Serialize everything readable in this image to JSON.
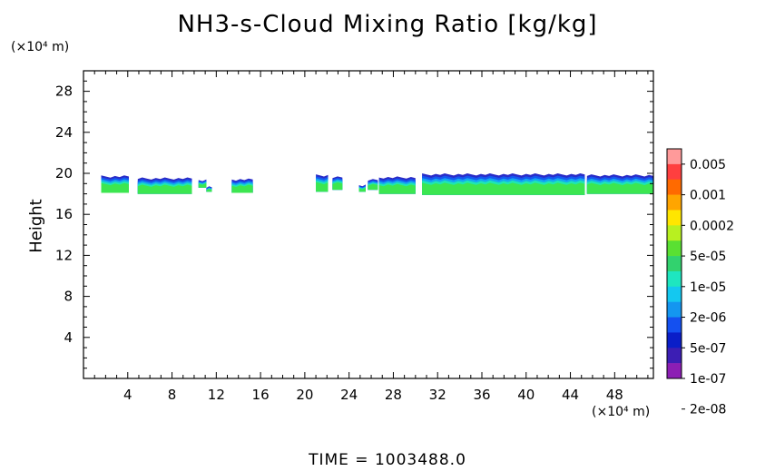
{
  "chart_data": {
    "type": "heatmap",
    "title": "NH3-s-Cloud Mixing Ratio [kg/kg]",
    "ylabel": "Height",
    "y_scale_note": "(×10⁴ m)",
    "x_scale_note": "(×10⁴ m)",
    "footer": "TIME = 1003488.0",
    "xlim": [
      0,
      51.5
    ],
    "ylim": [
      0,
      30
    ],
    "x_ticks": [
      "4",
      "8",
      "12",
      "16",
      "20",
      "24",
      "28",
      "32",
      "36",
      "40",
      "44",
      "48"
    ],
    "y_ticks": [
      "4",
      "8",
      "12",
      "16",
      "20",
      "24",
      "28"
    ],
    "colorbar": {
      "labels": [
        "0.005",
        "0.001",
        "0.0002",
        "5e-05",
        "1e-05",
        "2e-06",
        "5e-07",
        "1e-07",
        "2e-08"
      ],
      "colors": [
        "#ff9a9a",
        "#ff3f3f",
        "#ff6a00",
        "#ffa500",
        "#ffe600",
        "#b8f020",
        "#5ae032",
        "#32d26e",
        "#1ee6c0",
        "#14c8f0",
        "#1496f0",
        "#1450f0",
        "#0a1ec8",
        "#3c1eb4",
        "#8c1eb4"
      ]
    },
    "cloud_segments": [
      {
        "x_start": 1.6,
        "x_end": 4.1,
        "y_bottom": 18.1,
        "y_top": 19.8
      },
      {
        "x_start": 4.9,
        "x_end": 9.8,
        "y_bottom": 18.0,
        "y_top": 19.6
      },
      {
        "x_start": 10.4,
        "x_end": 11.1,
        "y_bottom": 18.6,
        "y_top": 19.4
      },
      {
        "x_start": 11.1,
        "x_end": 11.6,
        "y_bottom": 18.2,
        "y_top": 18.8
      },
      {
        "x_start": 13.4,
        "x_end": 15.3,
        "y_bottom": 18.1,
        "y_top": 19.5
      },
      {
        "x_start": 21.0,
        "x_end": 22.1,
        "y_bottom": 18.2,
        "y_top": 19.9
      },
      {
        "x_start": 22.5,
        "x_end": 23.4,
        "y_bottom": 18.4,
        "y_top": 19.7
      },
      {
        "x_start": 24.9,
        "x_end": 25.5,
        "y_bottom": 18.2,
        "y_top": 18.9
      },
      {
        "x_start": 25.7,
        "x_end": 26.6,
        "y_bottom": 18.4,
        "y_top": 19.5
      },
      {
        "x_start": 26.7,
        "x_end": 30.0,
        "y_bottom": 18.0,
        "y_top": 19.7
      },
      {
        "x_start": 30.6,
        "x_end": 45.3,
        "y_bottom": 17.9,
        "y_top": 20.0
      },
      {
        "x_start": 45.5,
        "x_end": 51.5,
        "y_bottom": 18.0,
        "y_top": 19.9
      }
    ]
  }
}
